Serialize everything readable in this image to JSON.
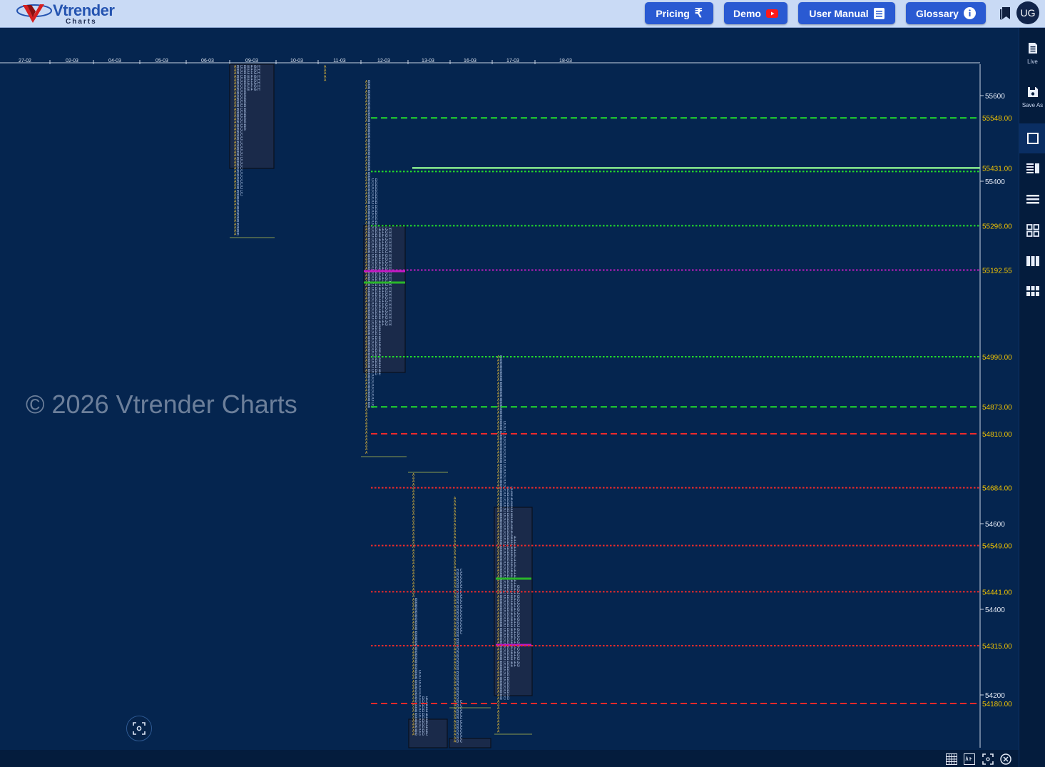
{
  "header": {
    "logo_text": "Vtrender",
    "logo_sub": "Charts",
    "buttons": [
      {
        "label": "Pricing",
        "icon": "rupee-icon"
      },
      {
        "label": "Demo",
        "icon": "youtube-icon"
      },
      {
        "label": "User Manual",
        "icon": "document-icon"
      },
      {
        "label": "Glossary",
        "icon": "info-icon"
      }
    ],
    "user_initials": "UG"
  },
  "sidebar": {
    "items": [
      {
        "icon": "document-icon",
        "label": "Live"
      },
      {
        "icon": "save-icon",
        "label": "Save As"
      },
      {
        "icon": "square-icon",
        "label": ""
      },
      {
        "icon": "split-view-icon",
        "label": ""
      },
      {
        "icon": "rows-icon",
        "label": ""
      },
      {
        "icon": "grid-icon",
        "label": ""
      },
      {
        "icon": "columns-icon",
        "label": ""
      },
      {
        "icon": "tiles-icon",
        "label": ""
      }
    ]
  },
  "watermark": "© 2026 Vtrender Charts",
  "chart_data": {
    "type": "market-profile",
    "date_labels": [
      "27-02",
      "02-03",
      "04-03",
      "05-03",
      "06-03",
      "09-03",
      "10-03",
      "11-03",
      "12-03",
      "13-03",
      "16-03",
      "17-03",
      "18-03"
    ],
    "price_axis_ticks": [
      55600,
      55400,
      54600,
      54400,
      54200
    ],
    "reference_levels": [
      {
        "value": "55548.00",
        "style": "dashed",
        "color": "#22e02a"
      },
      {
        "value": "55431.00",
        "style": "solid-dotted",
        "color": "#8bf08f"
      },
      {
        "value": "55296.00",
        "style": "dotted",
        "color": "#22e02a"
      },
      {
        "value": "55192.55",
        "style": "dotted",
        "color": "#c21bc2"
      },
      {
        "value": "54990.00",
        "style": "dotted",
        "color": "#22e02a"
      },
      {
        "value": "54873.00",
        "style": "dashed",
        "color": "#22e02a"
      },
      {
        "value": "54810.00",
        "style": "dashed",
        "color": "#ee2a2a"
      },
      {
        "value": "54684.00",
        "style": "dotted",
        "color": "#ee2a2a"
      },
      {
        "value": "54549.00",
        "style": "dotted",
        "color": "#ee2a2a"
      },
      {
        "value": "54441.00",
        "style": "dotted",
        "color": "#ee2a2a"
      },
      {
        "value": "54315.00",
        "style": "dotted",
        "color": "#ee2a2a"
      },
      {
        "value": "54180.00",
        "style": "dashed",
        "color": "#ee2a2a"
      }
    ]
  },
  "bottom_tools": [
    "grid-icon",
    "abc-icon",
    "fullscreen-icon",
    "close-icon"
  ]
}
